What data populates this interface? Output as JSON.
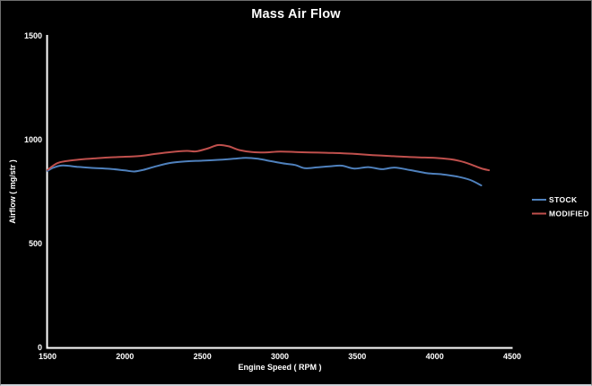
{
  "window": {
    "background_color": "#000000",
    "text_color": "#ffffff",
    "axis_color": "#ffffff"
  },
  "chart_data": {
    "type": "line",
    "title": "Mass Air Flow",
    "xlabel": "Engine Speed ( RPM )",
    "ylabel": "Airflow ( mg/str )",
    "xlim": [
      1500,
      4500
    ],
    "ylim": [
      0,
      1500
    ],
    "x_ticks": [
      1500,
      2000,
      2500,
      3000,
      3500,
      4000,
      4500
    ],
    "y_ticks": [
      0,
      500,
      1000,
      1500
    ],
    "grid": false,
    "legend_position": "right",
    "series": [
      {
        "name": "STOCK",
        "color": "#4F81BD",
        "x": [
          1500,
          1540,
          1600,
          1700,
          1800,
          1900,
          2000,
          2060,
          2120,
          2200,
          2300,
          2400,
          2500,
          2600,
          2700,
          2780,
          2860,
          2940,
          3020,
          3100,
          3160,
          3240,
          3320,
          3400,
          3480,
          3570,
          3660,
          3740,
          3840,
          3950,
          4050,
          4150,
          4230,
          4300
        ],
        "values": [
          850,
          866,
          876,
          869,
          864,
          860,
          852,
          847,
          855,
          872,
          889,
          896,
          899,
          903,
          908,
          913,
          908,
          897,
          886,
          878,
          863,
          867,
          872,
          875,
          861,
          868,
          858,
          866,
          854,
          839,
          833,
          822,
          806,
          780
        ]
      },
      {
        "name": "MODIFIED",
        "color": "#C0504D",
        "x": [
          1500,
          1560,
          1620,
          1700,
          1800,
          1900,
          2000,
          2100,
          2200,
          2300,
          2400,
          2460,
          2530,
          2600,
          2670,
          2740,
          2820,
          2900,
          3000,
          3100,
          3200,
          3300,
          3400,
          3500,
          3600,
          3700,
          3800,
          3900,
          4000,
          4100,
          4160,
          4230,
          4300,
          4350
        ],
        "values": [
          855,
          886,
          897,
          904,
          910,
          915,
          918,
          922,
          932,
          941,
          946,
          944,
          957,
          974,
          968,
          950,
          941,
          939,
          943,
          941,
          939,
          937,
          935,
          931,
          926,
          922,
          918,
          915,
          913,
          906,
          898,
          882,
          862,
          853
        ]
      }
    ]
  }
}
